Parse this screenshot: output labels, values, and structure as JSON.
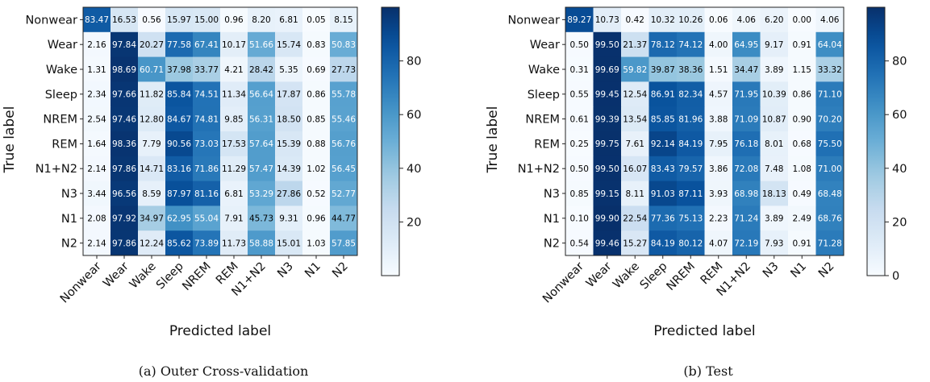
{
  "chart_data": [
    {
      "type": "heatmap",
      "caption": "(a)  Outer Cross-validation",
      "xlabel": "Predicted label",
      "ylabel": "True label",
      "row_labels": [
        "Nonwear",
        "Wear",
        "Wake",
        "Sleep",
        "NREM",
        "REM",
        "N1+N2",
        "N3",
        "N1",
        "N2"
      ],
      "col_labels": [
        "Nonwear",
        "Wear",
        "Wake",
        "Sleep",
        "NREM",
        "REM",
        "N1+N2",
        "N3",
        "N1",
        "N2"
      ],
      "values": [
        [
          "83.47",
          "16.53",
          "0.56",
          "15.97",
          "15.00",
          "0.96",
          "8.20",
          "6.81",
          "0.05",
          "8.15"
        ],
        [
          "2.16",
          "97.84",
          "20.27",
          "77.58",
          "67.41",
          "10.17",
          "51.66",
          "15.74",
          "0.83",
          "50.83"
        ],
        [
          "1.31",
          "98.69",
          "60.71",
          "37.98",
          "33.77",
          "4.21",
          "28.42",
          "5.35",
          "0.69",
          "27.73"
        ],
        [
          "2.34",
          "97.66",
          "11.82",
          "85.84",
          "74.51",
          "11.34",
          "56.64",
          "17.87",
          "0.86",
          "55.78"
        ],
        [
          "2.54",
          "97.46",
          "12.80",
          "84.67",
          "74.81",
          "9.85",
          "56.31",
          "18.50",
          "0.85",
          "55.46"
        ],
        [
          "1.64",
          "98.36",
          "7.79",
          "90.56",
          "73.03",
          "17.53",
          "57.64",
          "15.39",
          "0.88",
          "56.76"
        ],
        [
          "2.14",
          "97.86",
          "14.71",
          "83.16",
          "71.86",
          "11.29",
          "57.47",
          "14.39",
          "1.02",
          "56.45"
        ],
        [
          "3.44",
          "96.56",
          "8.59",
          "87.97",
          "81.16",
          "6.81",
          "53.29",
          "27.86",
          "0.52",
          "52.77"
        ],
        [
          "2.08",
          "97.92",
          "34.97",
          "62.95",
          "55.04",
          "7.91",
          "45.73",
          "9.31",
          "0.96",
          "44.77"
        ],
        [
          "2.14",
          "97.86",
          "12.24",
          "85.62",
          "73.89",
          "11.73",
          "58.88",
          "15.01",
          "1.03",
          "57.85"
        ]
      ],
      "colorbar_ticks": [
        "20",
        "40",
        "60",
        "80"
      ],
      "vmin": 0,
      "vmax": 100,
      "colormap": "Blues"
    },
    {
      "type": "heatmap",
      "caption": "(b)  Test",
      "xlabel": "Predicted label",
      "ylabel": "True label",
      "row_labels": [
        "Nonwear",
        "Wear",
        "Wake",
        "Sleep",
        "NREM",
        "REM",
        "N1+N2",
        "N3",
        "N1",
        "N2"
      ],
      "col_labels": [
        "Nonwear",
        "Wear",
        "Wake",
        "Sleep",
        "NREM",
        "REM",
        "N1+N2",
        "N3",
        "N1",
        "N2"
      ],
      "values": [
        [
          "89.27",
          "10.73",
          "0.42",
          "10.32",
          "10.26",
          "0.06",
          "4.06",
          "6.20",
          "0.00",
          "4.06"
        ],
        [
          "0.50",
          "99.50",
          "21.37",
          "78.12",
          "74.12",
          "4.00",
          "64.95",
          "9.17",
          "0.91",
          "64.04"
        ],
        [
          "0.31",
          "99.69",
          "59.82",
          "39.87",
          "38.36",
          "1.51",
          "34.47",
          "3.89",
          "1.15",
          "33.32"
        ],
        [
          "0.55",
          "99.45",
          "12.54",
          "86.91",
          "82.34",
          "4.57",
          "71.95",
          "10.39",
          "0.86",
          "71.10"
        ],
        [
          "0.61",
          "99.39",
          "13.54",
          "85.85",
          "81.96",
          "3.88",
          "71.09",
          "10.87",
          "0.90",
          "70.20"
        ],
        [
          "0.25",
          "99.75",
          "7.61",
          "92.14",
          "84.19",
          "7.95",
          "76.18",
          "8.01",
          "0.68",
          "75.50"
        ],
        [
          "0.50",
          "99.50",
          "16.07",
          "83.43",
          "79.57",
          "3.86",
          "72.08",
          "7.48",
          "1.08",
          "71.00"
        ],
        [
          "0.85",
          "99.15",
          "8.11",
          "91.03",
          "87.11",
          "3.93",
          "68.98",
          "18.13",
          "0.49",
          "68.48"
        ],
        [
          "0.10",
          "99.90",
          "22.54",
          "77.36",
          "75.13",
          "2.23",
          "71.24",
          "3.89",
          "2.49",
          "68.76"
        ],
        [
          "0.54",
          "99.46",
          "15.27",
          "84.19",
          "80.12",
          "4.07",
          "72.19",
          "7.93",
          "0.91",
          "71.28"
        ]
      ],
      "colorbar_ticks": [
        "0",
        "20",
        "40",
        "60",
        "80"
      ],
      "vmin": 0,
      "vmax": 100,
      "colormap": "Blues"
    }
  ]
}
